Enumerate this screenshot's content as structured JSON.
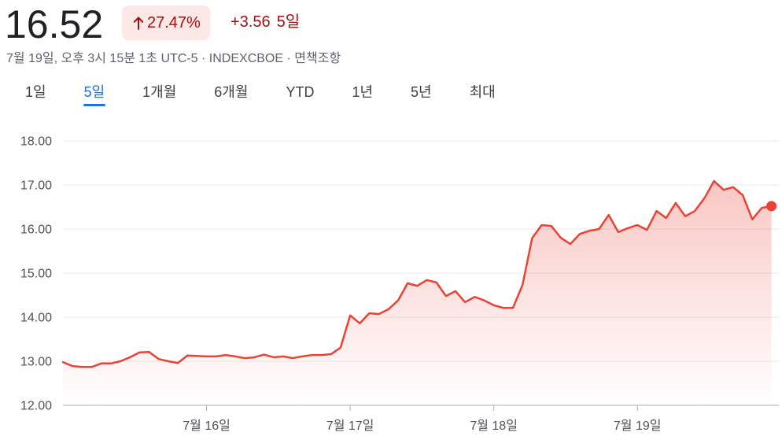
{
  "quote": {
    "price": "16.52",
    "change_icon": "arrow-up-icon",
    "change_percent": "27.47%",
    "change_value": "+3.56",
    "period": "5일",
    "timestamp": "7월 19일, 오후 3시 15분 1초 UTC-5",
    "separator": "·",
    "exchange": "INDEXCBOE",
    "disclaimer": "면책조항"
  },
  "colors": {
    "change_text": "#a50e0e",
    "change_badge_bg": "#fce8e6",
    "line": "#ea4335",
    "selected_tab": "#1a73e8"
  },
  "tabs": [
    {
      "label": "1일"
    },
    {
      "label": "5일",
      "selected": true
    },
    {
      "label": "1개월"
    },
    {
      "label": "6개월"
    },
    {
      "label": "YTD"
    },
    {
      "label": "1년"
    },
    {
      "label": "5년"
    },
    {
      "label": "최대"
    }
  ],
  "chart_data": {
    "type": "line",
    "title": "",
    "xlabel": "",
    "ylabel": "",
    "x_tick_labels": [
      "7월 16일",
      "7월 17일",
      "7월 18일",
      "7월 19일"
    ],
    "y_tick_labels": [
      "18.00",
      "17.00",
      "16.00",
      "15.00",
      "14.00",
      "13.00",
      "12.00"
    ],
    "ylim": [
      12,
      18
    ],
    "grid": true,
    "legend": "none",
    "area_fill": true,
    "last_point_marker": true,
    "series": [
      {
        "values": [
          12.98,
          12.89,
          12.87,
          12.87,
          12.95,
          12.95,
          13.0,
          13.09,
          13.2,
          13.21,
          13.05,
          13.0,
          12.96,
          13.13,
          13.12,
          13.11,
          13.11,
          13.14,
          13.11,
          13.07,
          13.09,
          13.15,
          13.09,
          13.11,
          13.07,
          13.11,
          13.14,
          13.14,
          13.16,
          13.31,
          14.04,
          13.86,
          14.09,
          14.07,
          14.18,
          14.38,
          14.77,
          14.71,
          14.84,
          14.79,
          14.48,
          14.59,
          14.34,
          14.46,
          14.38,
          14.27,
          14.21,
          14.21,
          14.73,
          15.79,
          16.09,
          16.07,
          15.8,
          15.66,
          15.89,
          15.96,
          16.0,
          16.32,
          15.93,
          16.02,
          16.09,
          15.98,
          16.41,
          16.25,
          16.59,
          16.29,
          16.41,
          16.7,
          17.09,
          16.89,
          16.95,
          16.77,
          16.22,
          16.48,
          16.52
        ]
      }
    ]
  }
}
